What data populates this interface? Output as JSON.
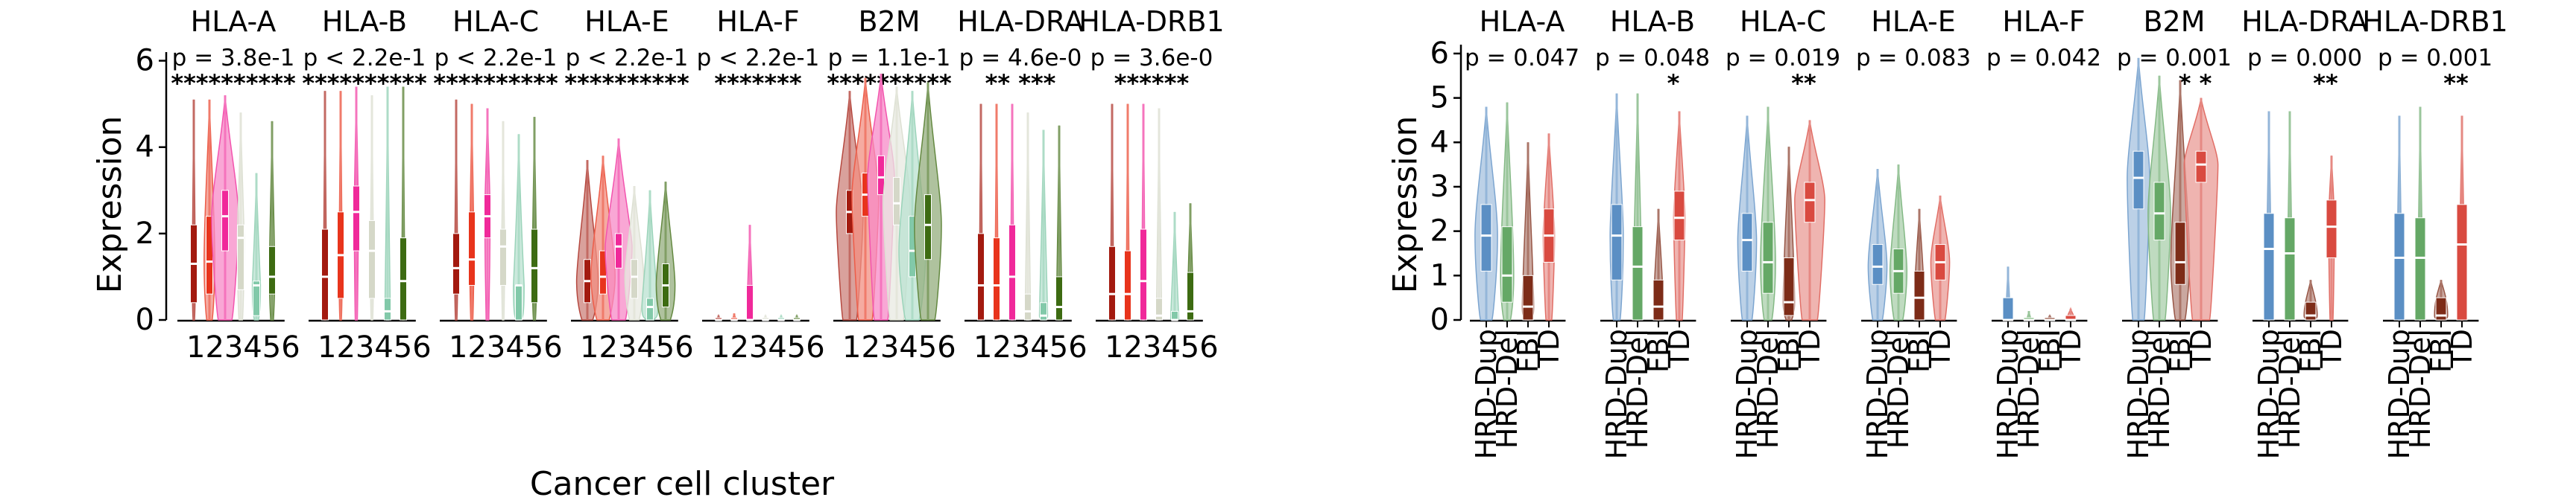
{
  "figure": {
    "left_ylabel": "Expression",
    "left_xlabel": "Cancer cell cluster",
    "right_ylabel": "Expression"
  },
  "chart_data": [
    {
      "type": "violin",
      "title": "",
      "xlabel": "Cancer cell cluster",
      "ylabel": "Expression",
      "ylim": [
        0,
        6.2
      ],
      "yticks": [
        0,
        2,
        4,
        6
      ],
      "categories": [
        "1",
        "2",
        "3",
        "4",
        "5",
        "6"
      ],
      "colors": [
        "#a31a0f",
        "#e8341c",
        "#f0299a",
        "#d5d8c8",
        "#82c9a9",
        "#3d6b12"
      ],
      "panels": [
        {
          "gene": "HLA-A",
          "p": "p = 3.8e-1",
          "stars": "**********",
          "q1": [
            0.4,
            0.6,
            1.6,
            0.7,
            0.1,
            0.6
          ],
          "median": [
            1.3,
            1.35,
            2.4,
            1.9,
            0.8,
            1.0
          ],
          "q3": [
            2.2,
            2.4,
            3.0,
            2.2,
            0.9,
            1.7
          ],
          "max": [
            5.1,
            5.1,
            5.2,
            4.8,
            3.4,
            4.6
          ],
          "dens": [
            0.1,
            0.4,
            1.0,
            0.25,
            0.3,
            0.2
          ]
        },
        {
          "gene": "HLA-B",
          "p": "p < 2.2e-1",
          "stars": "**********",
          "q1": [
            0.0,
            0.5,
            1.6,
            0.5,
            0.0,
            0.0
          ],
          "median": [
            1.0,
            1.5,
            2.5,
            1.6,
            0.2,
            0.9
          ],
          "q3": [
            2.1,
            2.5,
            3.1,
            2.3,
            0.5,
            1.9
          ],
          "max": [
            5.3,
            5.3,
            5.4,
            5.2,
            5.4,
            5.4
          ],
          "dens": [
            0.05,
            0.1,
            0.15,
            0.1,
            0.2,
            0.1
          ]
        },
        {
          "gene": "HLA-C",
          "p": "p < 2.2e-1",
          "stars": "**********",
          "q1": [
            0.6,
            0.8,
            1.9,
            0.8,
            0.0,
            0.4
          ],
          "median": [
            1.2,
            1.4,
            2.4,
            1.7,
            0.8,
            1.2
          ],
          "q3": [
            2.0,
            2.5,
            2.9,
            2.1,
            0.8,
            2.1
          ],
          "max": [
            5.1,
            5.0,
            4.9,
            4.6,
            4.3,
            4.7
          ],
          "dens": [
            0.1,
            0.15,
            0.2,
            0.1,
            0.4,
            0.15
          ]
        },
        {
          "gene": "HLA-E",
          "p": "p < 2.2e-1",
          "stars": "**********",
          "q1": [
            0.4,
            0.6,
            1.2,
            0.5,
            0.0,
            0.3
          ],
          "median": [
            0.9,
            1.0,
            1.7,
            1.0,
            0.3,
            0.8
          ],
          "q3": [
            1.4,
            1.6,
            2.0,
            1.4,
            0.5,
            1.3
          ],
          "max": [
            3.7,
            3.8,
            4.2,
            3.1,
            3.0,
            3.2
          ],
          "dens": [
            0.8,
            0.9,
            1.0,
            0.7,
            0.6,
            0.7
          ]
        },
        {
          "gene": "HLA-F",
          "p": "p < 2.2e-1",
          "stars": "*******",
          "q1": [
            0.0,
            0.0,
            0.0,
            0.0,
            0.0,
            0.0
          ],
          "median": [
            0.0,
            0.0,
            0.0,
            0.0,
            0.0,
            0.0
          ],
          "q3": [
            0.05,
            0.05,
            0.8,
            0.05,
            0.05,
            0.05
          ],
          "max": [
            0.1,
            0.15,
            2.2,
            0.1,
            0.1,
            0.1
          ],
          "dens": [
            0.1,
            0.1,
            0.2,
            0.1,
            0.1,
            0.1
          ]
        },
        {
          "gene": "B2M",
          "p": "p = 1.1e-1",
          "stars": "**********",
          "q1": [
            2.0,
            2.4,
            2.9,
            2.2,
            1.0,
            1.4
          ],
          "median": [
            2.5,
            2.9,
            3.3,
            2.7,
            1.6,
            2.2
          ],
          "q3": [
            3.0,
            3.4,
            3.8,
            3.3,
            2.4,
            2.9
          ],
          "max": [
            5.3,
            5.6,
            5.7,
            5.4,
            5.3,
            5.5
          ],
          "dens": [
            1.0,
            1.0,
            1.0,
            1.0,
            1.0,
            1.0
          ]
        },
        {
          "gene": "HLA-DRA",
          "p": "p = 4.6e-0",
          "stars": "** ***",
          "q1": [
            0.0,
            0.0,
            0.0,
            0.0,
            0.0,
            0.0
          ],
          "median": [
            0.8,
            0.8,
            1.0,
            0.2,
            0.1,
            0.3
          ],
          "q3": [
            2.0,
            1.9,
            2.2,
            0.6,
            0.4,
            1.0
          ],
          "max": [
            5.0,
            5.0,
            5.0,
            4.8,
            4.4,
            4.5
          ],
          "dens": [
            0.05,
            0.05,
            0.05,
            0.2,
            0.3,
            0.2
          ]
        },
        {
          "gene": "HLA-DRB1",
          "p": "p = 3.6e-0",
          "stars": "******",
          "q1": [
            0.0,
            0.0,
            0.0,
            0.0,
            0.0,
            0.0
          ],
          "median": [
            0.6,
            0.6,
            0.9,
            0.1,
            0.0,
            0.2
          ],
          "q3": [
            1.7,
            1.6,
            2.1,
            0.5,
            0.2,
            1.1
          ],
          "max": [
            5.0,
            5.0,
            5.0,
            4.9,
            2.5,
            2.7
          ],
          "dens": [
            0.05,
            0.05,
            0.05,
            0.2,
            0.3,
            0.2
          ]
        }
      ]
    },
    {
      "type": "violin",
      "title": "",
      "xlabel": "",
      "ylabel": "Expression",
      "ylim": [
        0,
        6.2
      ],
      "yticks": [
        0,
        1,
        2,
        3,
        4,
        5,
        6
      ],
      "categories": [
        "HRD-Dup",
        "HRD-Del",
        "FBI",
        "TD"
      ],
      "colors": [
        "#5b8fc4",
        "#65a866",
        "#7d2c18",
        "#d94a40"
      ],
      "panels": [
        {
          "gene": "HLA-A",
          "p": "p = 0.047",
          "stars": "",
          "q1": [
            1.1,
            0.4,
            0.0,
            1.3
          ],
          "median": [
            1.9,
            1.0,
            0.3,
            1.9
          ],
          "q3": [
            2.6,
            2.1,
            1.0,
            2.5
          ],
          "max": [
            4.8,
            4.9,
            4.0,
            4.2
          ],
          "dens": [
            0.6,
            0.35,
            0.3,
            0.3
          ]
        },
        {
          "gene": "HLA-B",
          "p": "p = 0.048",
          "stars": "*",
          "q1": [
            0.9,
            0.0,
            0.0,
            1.8
          ],
          "median": [
            1.9,
            1.2,
            0.3,
            2.3
          ],
          "q3": [
            2.6,
            2.1,
            0.9,
            2.9
          ],
          "max": [
            5.1,
            5.1,
            2.5,
            4.7
          ],
          "dens": [
            0.35,
            0.2,
            0.25,
            0.3
          ]
        },
        {
          "gene": "HLA-C",
          "p": "p = 0.019",
          "stars": "**",
          "q1": [
            1.1,
            0.6,
            0.1,
            2.2
          ],
          "median": [
            1.8,
            1.3,
            0.4,
            2.7
          ],
          "q3": [
            2.4,
            2.2,
            1.4,
            3.1
          ],
          "max": [
            4.6,
            4.8,
            3.9,
            4.5
          ],
          "dens": [
            0.5,
            0.4,
            0.3,
            0.8
          ]
        },
        {
          "gene": "HLA-E",
          "p": "p = 0.083",
          "stars": "",
          "q1": [
            0.8,
            0.6,
            0.0,
            0.9
          ],
          "median": [
            1.2,
            1.1,
            0.5,
            1.3
          ],
          "q3": [
            1.7,
            1.6,
            1.1,
            1.7
          ],
          "max": [
            3.4,
            3.5,
            2.5,
            2.8
          ],
          "dens": [
            0.5,
            0.45,
            0.25,
            0.5
          ]
        },
        {
          "gene": "HLA-F",
          "p": "p = 0.042",
          "stars": "",
          "q1": [
            0.0,
            0.0,
            0.0,
            0.0
          ],
          "median": [
            0.0,
            0.0,
            0.0,
            0.0
          ],
          "q3": [
            0.5,
            0.05,
            0.05,
            0.1
          ],
          "max": [
            1.2,
            0.2,
            0.1,
            0.25
          ],
          "dens": [
            0.1,
            0.1,
            0.1,
            0.2
          ]
        },
        {
          "gene": "B2M",
          "p": "p = 0.001",
          "stars": "*  *",
          "q1": [
            2.5,
            1.8,
            0.8,
            3.1
          ],
          "median": [
            3.2,
            2.4,
            1.3,
            3.5
          ],
          "q3": [
            3.8,
            3.1,
            2.2,
            3.8
          ],
          "max": [
            5.9,
            5.5,
            5.4,
            5.0
          ],
          "dens": [
            0.6,
            0.6,
            0.5,
            0.9
          ]
        },
        {
          "gene": "HLA-DRA",
          "p": "p = 0.000",
          "stars": "**",
          "q1": [
            0.0,
            0.0,
            0.0,
            1.4
          ],
          "median": [
            1.6,
            1.5,
            0.1,
            2.1
          ],
          "q3": [
            2.4,
            2.3,
            0.4,
            2.7
          ],
          "max": [
            4.7,
            4.7,
            0.9,
            3.7
          ],
          "dens": [
            0.1,
            0.1,
            0.35,
            0.15
          ]
        },
        {
          "gene": "HLA-DRB1",
          "p": "p = 0.001",
          "stars": "**",
          "q1": [
            0.0,
            0.0,
            0.0,
            0.0
          ],
          "median": [
            1.4,
            1.4,
            0.1,
            1.7
          ],
          "q3": [
            2.4,
            2.3,
            0.5,
            2.6
          ],
          "max": [
            4.6,
            4.8,
            0.9,
            4.6
          ],
          "dens": [
            0.1,
            0.1,
            0.35,
            0.1
          ]
        }
      ]
    }
  ]
}
